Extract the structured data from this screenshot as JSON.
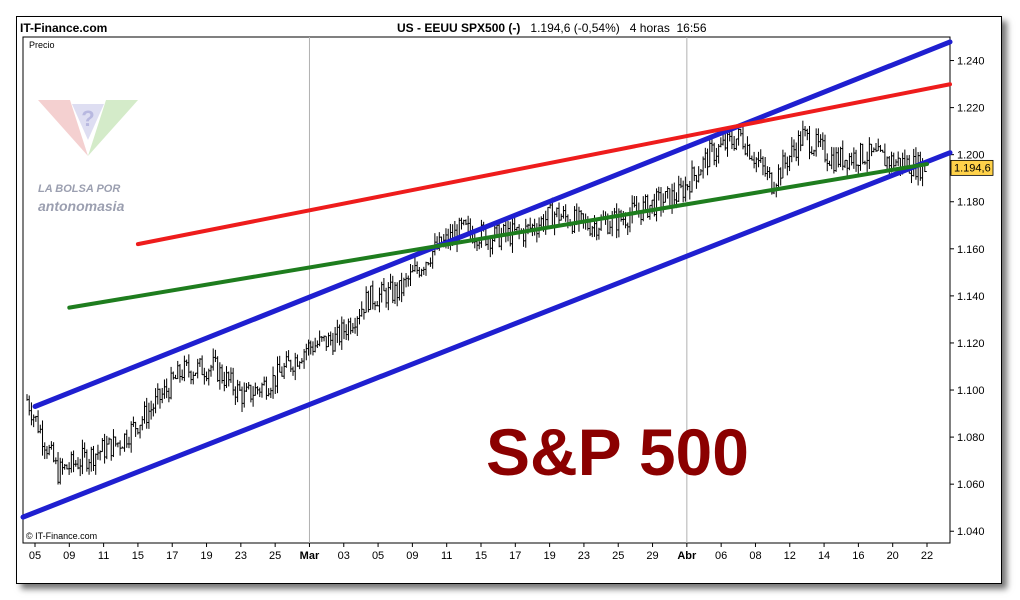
{
  "header": {
    "site": "IT-Finance.com",
    "instrument": "US - EEUU SPX500 (-)",
    "price_change": "1.194,6 (-0,54%)",
    "timeframe": "4 horas",
    "time": "16:56"
  },
  "copyright": "© IT-Finance.com",
  "watermark": {
    "line1": "LA BOLSA POR",
    "line2": "antonomasia"
  },
  "colors": {
    "price_bars": "#000000",
    "channel": "#1f1fd0",
    "resistance": "#ee1c1c",
    "support": "#1e7d1e",
    "title": "#8b0000",
    "last_price_box": "#ffd24a",
    "grid": "#b0b0b0"
  },
  "chart_data": {
    "type": "line",
    "title": "S&P 500",
    "ylabel": "Precio",
    "xlabel": "",
    "ylim": [
      1.035,
      1.25
    ],
    "y_ticks": [
      "1.040",
      "1.060",
      "1.080",
      "1.100",
      "1.120",
      "1.140",
      "1.160",
      "1.180",
      "1.200",
      "1.220",
      "1.240"
    ],
    "y_tick_values": [
      1.04,
      1.06,
      1.08,
      1.1,
      1.12,
      1.14,
      1.16,
      1.18,
      1.2,
      1.22,
      1.24
    ],
    "x_ticks": [
      "05",
      "09",
      "11",
      "15",
      "17",
      "19",
      "23",
      "25",
      "Mar",
      "03",
      "05",
      "09",
      "11",
      "15",
      "17",
      "19",
      "23",
      "25",
      "29",
      "Abr",
      "06",
      "08",
      "12",
      "14",
      "16",
      "20",
      "22"
    ],
    "month_ticks": [
      "Mar",
      "Abr"
    ],
    "grid": {
      "vertical_at": [
        "Mar",
        "Abr"
      ]
    },
    "last_price": "1.194,6",
    "last_price_value": 1.1946,
    "series": [
      {
        "role": "price",
        "x": [
          "05",
          "09",
          "11",
          "15",
          "17",
          "19",
          "23",
          "25",
          "Mar",
          "03",
          "05",
          "09",
          "11",
          "15",
          "17",
          "19",
          "23",
          "25",
          "29",
          "Abr",
          "06",
          "08",
          "12",
          "14",
          "16",
          "20",
          "22"
        ],
        "values": [
          1.096,
          1.065,
          1.072,
          1.078,
          1.092,
          1.108,
          1.11,
          1.097,
          1.105,
          1.118,
          1.122,
          1.139,
          1.142,
          1.158,
          1.168,
          1.165,
          1.167,
          1.175,
          1.17,
          1.172,
          1.178,
          1.183,
          1.2,
          1.208,
          1.188,
          1.208,
          1.198
        ]
      },
      {
        "role": "channel-upper",
        "x": [
          "05",
          "22"
        ],
        "values": [
          1.093,
          1.244
        ]
      },
      {
        "role": "channel-lower",
        "x": [
          "05",
          "22"
        ],
        "values": [
          1.048,
          1.197
        ]
      },
      {
        "role": "resistance",
        "x": [
          "15",
          "22"
        ],
        "values": [
          1.162,
          1.228
        ]
      },
      {
        "role": "support",
        "x": [
          "09",
          "22"
        ],
        "values": [
          1.135,
          1.196
        ]
      }
    ],
    "tail": [
      1.2,
      1.197,
      1.1946
    ]
  }
}
